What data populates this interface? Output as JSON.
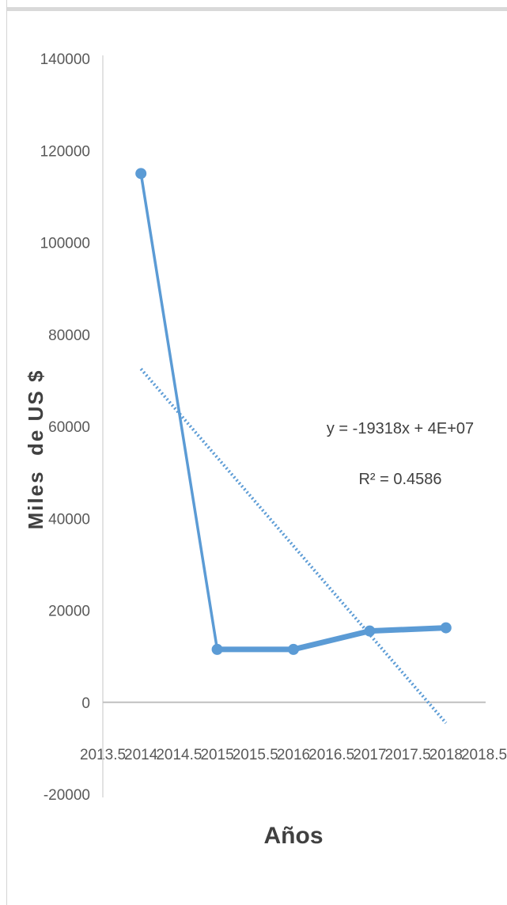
{
  "chart_data": {
    "type": "line",
    "title": "",
    "xlabel": "Años",
    "ylabel": "Miles  de US $",
    "xlim": [
      2013.5,
      2018.5
    ],
    "ylim": [
      -20000,
      140000
    ],
    "x_ticks": [
      2013.5,
      2014,
      2014.5,
      2015,
      2015.5,
      2016,
      2016.5,
      2017,
      2017.5,
      2018,
      2018.5
    ],
    "y_ticks": [
      -20000,
      0,
      20000,
      40000,
      60000,
      80000,
      100000,
      120000,
      140000
    ],
    "grid": false,
    "legend": "none",
    "series": [
      {
        "x": [
          2014,
          2015,
          2016,
          2017,
          2018
        ],
        "y": [
          115000,
          11500,
          11500,
          15500,
          16200
        ],
        "color": "#5b9bd5",
        "marker": "circle"
      }
    ],
    "trendline": {
      "type": "linear",
      "style": "dotted",
      "color": "#5b9bd5",
      "x_range": [
        2014,
        2018
      ],
      "y_range": [
        72500,
        -4500
      ],
      "equation": "y = -19318x + 4E+07",
      "r_squared": "R² = 0.4586"
    }
  }
}
